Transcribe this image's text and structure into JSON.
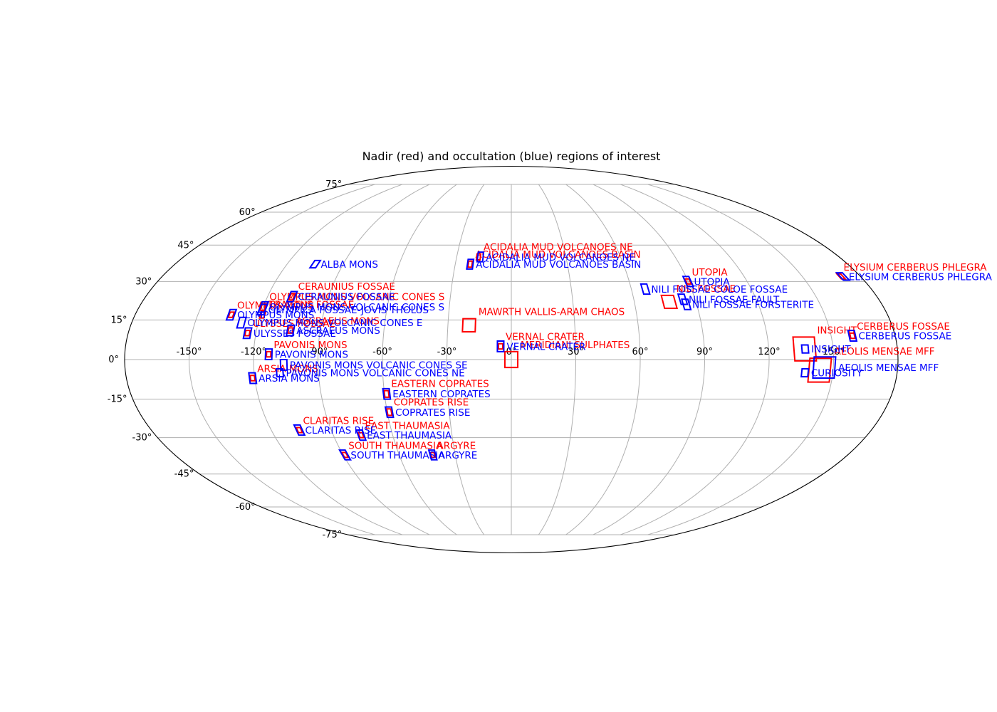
{
  "chart_data": {
    "type": "scatter",
    "projection": "mollweide",
    "title": "Nadir (red) and occultation (blue) regions of interest",
    "grid": true,
    "colors": {
      "nadir": "#ff0000",
      "occultation": "#0000ff",
      "grid": "#b0b0b0"
    },
    "x_ticks": [
      "-150°",
      "-120°",
      "-90°",
      "-60°",
      "-30°",
      "0°",
      "30°",
      "60°",
      "90°",
      "120°",
      "150°"
    ],
    "y_ticks": [
      "-75°",
      "-60°",
      "-45°",
      "-30°",
      "-15°",
      "0°",
      "15°",
      "30°",
      "45°",
      "60°",
      "75°"
    ],
    "series": [
      {
        "name": "Nadir",
        "color": "#ff0000",
        "points": [
          {
            "label": "ACIDALIA MUD VOLCANOES NE",
            "lon": -18,
            "lat": 40,
            "w": 2,
            "h": 2.5
          },
          {
            "label": "ACIDALIA MUD VOLCANOES BASIN",
            "lon": -22,
            "lat": 37,
            "w": 2,
            "h": 2.5
          },
          {
            "label": "UTOPIA",
            "lon": 90,
            "lat": 30,
            "w": 2,
            "h": 2
          },
          {
            "label": "ELYSIUM CERBERUS PHLEGRA",
            "lon": 170,
            "lat": 32,
            "w": 2,
            "h": 2
          },
          {
            "label": "NILI FOSSAE",
            "lon": 77,
            "lat": 22,
            "w": 6,
            "h": 5
          },
          {
            "label": "CERAUNIUS FOSSAE",
            "lon": -108,
            "lat": 24,
            "w": 2,
            "h": 2.5
          },
          {
            "label": "OLYMPUS MONS VOLCANIC CONES S",
            "lon": -120,
            "lat": 20,
            "w": 2,
            "h": 2.5
          },
          {
            "label": "OLYMPUS MONS",
            "lon": -134,
            "lat": 17,
            "w": 2,
            "h": 2
          },
          {
            "label": "TRACTUS FOSSAE",
            "lon": -119,
            "lat": 17,
            "w": 2,
            "h": 2.5
          },
          {
            "label": "MAWRTH VALLIS-ARAM CHAOS",
            "lon": -20,
            "lat": 13,
            "w": 6,
            "h": 5
          },
          {
            "label": "ULYSSES FOSSAE",
            "lon": -124,
            "lat": 10,
            "w": 2,
            "h": 2
          },
          {
            "label": "ASCRAEUS MONS",
            "lon": -104,
            "lat": 11,
            "w": 2,
            "h": 2
          },
          {
            "label": "VERNAL CRATER",
            "lon": -5,
            "lat": 5,
            "w": 2,
            "h": 2
          },
          {
            "label": "PAVONIS MONS",
            "lon": -113,
            "lat": 2,
            "w": 2,
            "h": 2
          },
          {
            "label": "MERIDIANI SULPHATES",
            "lon": 0,
            "lat": 0,
            "w": 6,
            "h": 6
          },
          {
            "label": "INSIGHT",
            "lon": 137,
            "lat": 4,
            "w": 10,
            "h": 9
          },
          {
            "label": "AEOLIS MENSAE MFF",
            "lon": 144,
            "lat": -4,
            "w": 10,
            "h": 9
          },
          {
            "label": "ARSIA MONS",
            "lon": -121,
            "lat": -7,
            "w": 2,
            "h": 2
          },
          {
            "label": "EASTERN COPRATES",
            "lon": -59,
            "lat": -13,
            "w": 2,
            "h": 2.5
          },
          {
            "label": "COPRATES RISE",
            "lon": -59,
            "lat": -20,
            "w": 2,
            "h": 2.5
          },
          {
            "label": "CLARITAS RISE",
            "lon": -106,
            "lat": -27,
            "w": 2,
            "h": 2
          },
          {
            "label": "EAST THAUMASIA",
            "lon": -76,
            "lat": -29,
            "w": 2,
            "h": 2
          },
          {
            "label": "SOUTH THAUMASIA",
            "lon": -89,
            "lat": -37,
            "w": 2,
            "h": 2
          },
          {
            "label": "ARGYRE",
            "lon": -42,
            "lat": -37,
            "w": 2,
            "h": 2
          },
          {
            "label": "CERBERUS FOSSAE",
            "lon": 160,
            "lat": 9,
            "w": 2,
            "h": 2
          }
        ]
      },
      {
        "name": "Occultation",
        "color": "#0000ff",
        "points": [
          {
            "label": "ACIDALIA MUD VOLCANOES NE",
            "lon": -17,
            "lat": 40,
            "w": 3,
            "h": 4
          },
          {
            "label": "ACIDALIA MUD VOLCANOES BASIN",
            "lon": -22,
            "lat": 37,
            "w": 3,
            "h": 4
          },
          {
            "label": "ALBA MONS",
            "lon": -105,
            "lat": 37,
            "w": 3,
            "h": 3
          },
          {
            "label": "UTOPIA",
            "lon": 90,
            "lat": 30,
            "w": 3,
            "h": 4
          },
          {
            "label": "ELYSIUM CERBERUS PHLEGRA",
            "lon": 171,
            "lat": 32,
            "w": 3,
            "h": 3
          },
          {
            "label": "NILI FOSSAE COLOE FOSSAE",
            "lon": 67,
            "lat": 27,
            "w": 3,
            "h": 4
          },
          {
            "label": "NILI FOSSAE FAULT",
            "lon": 84,
            "lat": 23,
            "w": 3,
            "h": 4
          },
          {
            "label": "NILI FOSSAE FORSTERITE",
            "lon": 85,
            "lat": 21,
            "w": 3,
            "h": 4
          },
          {
            "label": "CERAUNIUS FOSSAE",
            "lon": -108,
            "lat": 24,
            "w": 3,
            "h": 4
          },
          {
            "label": "OLYMPUS MONS VOLCANIC CONES S",
            "lon": -120,
            "lat": 20,
            "w": 3,
            "h": 4
          },
          {
            "label": "OLYMPICA FOSSAE-JOVIS THOLUS",
            "lon": -120,
            "lat": 19,
            "w": 3,
            "h": 4
          },
          {
            "label": "OLYMPUS MONS",
            "lon": -134,
            "lat": 17,
            "w": 3,
            "h": 4
          },
          {
            "label": "OLYMPUS MONS VOLCANIC CONES E",
            "lon": -128,
            "lat": 14,
            "w": 3,
            "h": 4
          },
          {
            "label": "ULYSSES FOSSAE",
            "lon": -124,
            "lat": 10,
            "w": 3,
            "h": 4
          },
          {
            "label": "ASCRAEUS MONS",
            "lon": -104,
            "lat": 11,
            "w": 3,
            "h": 4
          },
          {
            "label": "VERNAL CRATER",
            "lon": -5,
            "lat": 5,
            "w": 3,
            "h": 4
          },
          {
            "label": "PAVONIS MONS",
            "lon": -113,
            "lat": 2,
            "w": 3,
            "h": 4
          },
          {
            "label": "PAVONIS MONS VOLCANIC CONES SE",
            "lon": -106,
            "lat": -2,
            "w": 3,
            "h": 4
          },
          {
            "label": "PAVONIS MONS VOLCANIC CONES NE",
            "lon": -108,
            "lat": -5,
            "w": 3,
            "h": 3
          },
          {
            "label": "INSIGHT",
            "lon": 137,
            "lat": 4,
            "w": 3,
            "h": 3
          },
          {
            "label": "CURIOSITY",
            "lon": 137,
            "lat": -5,
            "w": 3,
            "h": 3
          },
          {
            "label": "AEOLIS MENSAE MFF",
            "lon": 146,
            "lat": -3,
            "w": 10,
            "h": 8
          },
          {
            "label": "ARSIA MONS",
            "lon": -121,
            "lat": -7,
            "w": 3,
            "h": 4
          },
          {
            "label": "EASTERN COPRATES",
            "lon": -59,
            "lat": -13,
            "w": 3,
            "h": 4
          },
          {
            "label": "COPRATES RISE",
            "lon": -59,
            "lat": -20,
            "w": 3,
            "h": 4
          },
          {
            "label": "CLARITAS RISE",
            "lon": -106,
            "lat": -27,
            "w": 3,
            "h": 4
          },
          {
            "label": "EAST THAUMASIA",
            "lon": -76,
            "lat": -29,
            "w": 3,
            "h": 4
          },
          {
            "label": "SOUTH THAUMASIA",
            "lon": -89,
            "lat": -37,
            "w": 3,
            "h": 4
          },
          {
            "label": "ARGYRE",
            "lon": -42,
            "lat": -37,
            "w": 3,
            "h": 4
          },
          {
            "label": "CERBERUS FOSSAE",
            "lon": 160,
            "lat": 9,
            "w": 3,
            "h": 4
          }
        ]
      }
    ]
  }
}
